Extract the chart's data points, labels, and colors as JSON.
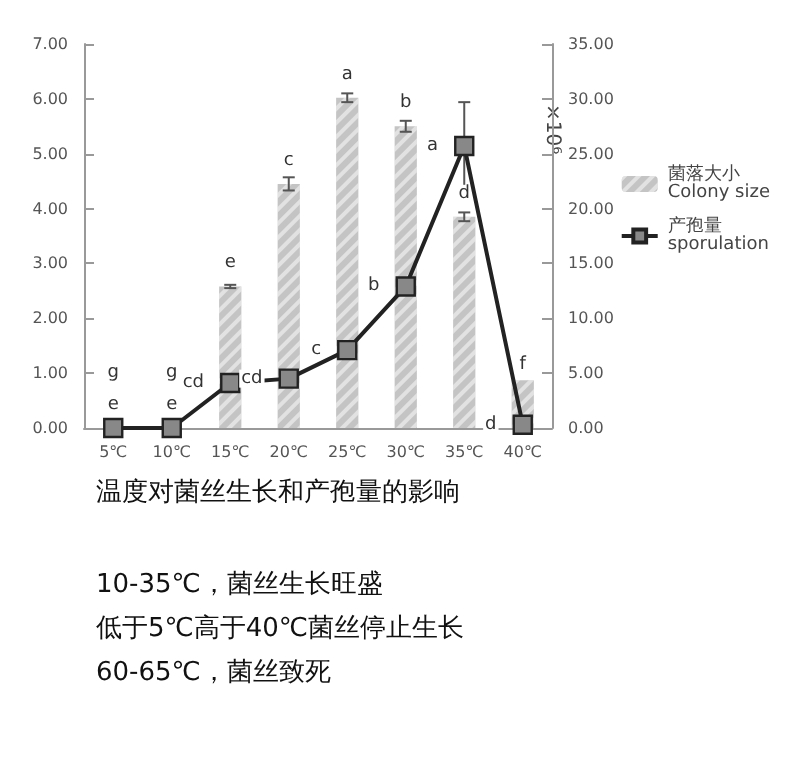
{
  "chart_data": {
    "type": "bar",
    "categories": [
      "5℃",
      "10℃",
      "15℃",
      "20℃",
      "25℃",
      "30℃",
      "35℃",
      "40℃"
    ],
    "series": [
      {
        "name": "菌落大小\nColony size",
        "color": "#c4c4c4",
        "values": [
          0,
          0,
          2.58,
          4.45,
          6.02,
          5.5,
          3.85,
          0.87
        ],
        "errors": [
          null,
          null,
          0.03,
          0.12,
          0.08,
          0.1,
          0.08,
          null
        ],
        "value_labels": [
          "e",
          "e",
          "e",
          "c",
          "a",
          "b",
          "d",
          "f"
        ]
      },
      {
        "name": "产孢量\nsporulation",
        "type": "line",
        "axis": "y2",
        "color": "#222222",
        "marker": "square",
        "values": [
          0,
          0,
          4.1,
          4.5,
          7.1,
          12.9,
          25.7,
          0.3
        ],
        "errors": [
          null,
          null,
          null,
          null,
          null,
          null,
          4,
          null
        ],
        "value_labels": [
          "g",
          "g",
          "cd",
          "cd",
          "c",
          "b",
          "a",
          "d"
        ]
      }
    ],
    "ylim": [
      0,
      7
    ],
    "yticks": [
      {
        "value": 0,
        "label": "0.00"
      },
      {
        "value": 1,
        "label": "1.00"
      },
      {
        "value": 2,
        "label": "2.00"
      },
      {
        "value": 3,
        "label": "3.00"
      },
      {
        "value": 4,
        "label": "4.00"
      },
      {
        "value": 5,
        "label": "5.00"
      },
      {
        "value": 6,
        "label": "6.00"
      },
      {
        "value": 7,
        "label": "7.00"
      }
    ],
    "y2lim": [
      0,
      35
    ],
    "y2ticks": [
      {
        "value": 0,
        "label": "0.00"
      },
      {
        "value": 5,
        "label": "5.00"
      },
      {
        "value": 10,
        "label": "10.00"
      },
      {
        "value": 15,
        "label": "15.00"
      },
      {
        "value": 20,
        "label": "20.00"
      },
      {
        "value": 25,
        "label": "25.00"
      },
      {
        "value": 30,
        "label": "30.00"
      },
      {
        "value": 35,
        "label": "35.00"
      }
    ],
    "y2label": "×10⁶",
    "legend": "right",
    "grid": false,
    "annotations": [
      "温度对菌丝生长和产孢量的影响",
      "10-35℃，菌丝生长旺盛",
      "低于5℃高于40℃菌丝停止生长",
      "60-65℃，菌丝致死"
    ]
  }
}
